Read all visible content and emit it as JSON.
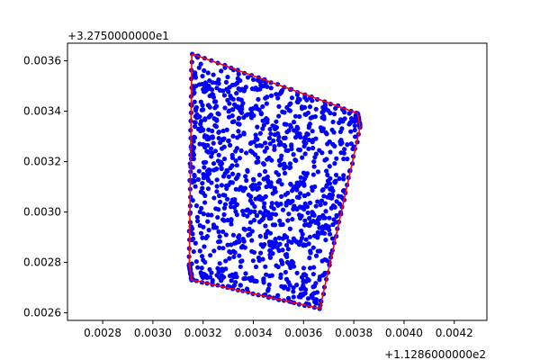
{
  "chart_data": {
    "type": "scatter",
    "title": "",
    "xlabel": "",
    "ylabel": "",
    "x_offset_text": "+1.1286000000e2",
    "y_offset_text": "+3.2750000000e1",
    "xlim": [
      0.00266,
      0.00433
    ],
    "ylim": [
      0.00257,
      0.00367
    ],
    "x_ticks": [
      0.0028,
      0.003,
      0.0032,
      0.0034,
      0.0036,
      0.0038,
      0.004,
      0.0042
    ],
    "x_tick_labels": [
      "0.0028",
      "0.0030",
      "0.0032",
      "0.0034",
      "0.0036",
      "0.0038",
      "0.0040",
      "0.0042"
    ],
    "y_ticks": [
      0.0026,
      0.0028,
      0.003,
      0.0032,
      0.0034,
      0.0036
    ],
    "y_tick_labels": [
      "0.0026",
      "0.0028",
      "0.0030",
      "0.0032",
      "0.0034",
      "0.0036"
    ],
    "grid": false,
    "legend": "none",
    "colors": {
      "points": "#0000ff",
      "hull": "#ff0000",
      "axes": "#000000"
    },
    "hull": {
      "name": "",
      "x": [
        0.003155,
        0.003815,
        0.003825,
        0.003665,
        0.003155,
        0.003145,
        0.003155
      ],
      "y": [
        0.003628,
        0.003392,
        0.003336,
        0.002617,
        0.002731,
        0.00279,
        0.003628
      ]
    },
    "points": {
      "name": "",
      "x": [],
      "y": []
    }
  }
}
